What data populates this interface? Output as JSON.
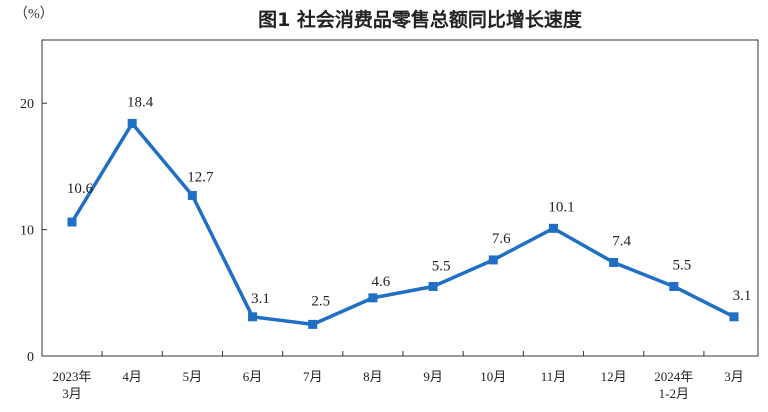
{
  "chart_data": {
    "type": "line",
    "title": "图1  社会消费品零售总额同比增长速度",
    "unit_label": "（%）",
    "categories": [
      [
        "2023年",
        "3月"
      ],
      [
        "4月"
      ],
      [
        "5月"
      ],
      [
        "6月"
      ],
      [
        "7月"
      ],
      [
        "8月"
      ],
      [
        "9月"
      ],
      [
        "10月"
      ],
      [
        "11月"
      ],
      [
        "12月"
      ],
      [
        "2024年",
        "1-2月"
      ],
      [
        "3月"
      ]
    ],
    "series": [
      {
        "values": [
          10.6,
          18.4,
          12.7,
          3.1,
          2.5,
          4.6,
          5.5,
          7.6,
          10.1,
          7.4,
          5.5,
          3.1
        ],
        "color": "#1f6fc5",
        "marker": "square"
      }
    ],
    "data_labels": [
      "10.6",
      "18.4",
      "12.7",
      "3.1",
      "2.5",
      "4.6",
      "5.5",
      "7.6",
      "10.1",
      "7.4",
      "5.5",
      "3.1"
    ],
    "yticks": [
      0,
      10,
      20
    ],
    "ylim": [
      0,
      25
    ],
    "grid": false
  }
}
